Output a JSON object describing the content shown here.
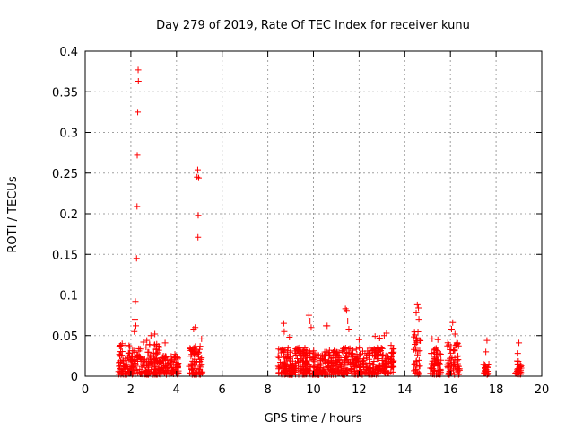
{
  "chart_data": {
    "type": "scatter",
    "title": "Day 279 of 2019, Rate Of TEC Index for receiver kunu",
    "xlabel": "GPS time / hours",
    "ylabel": "ROTI / TECUs",
    "xlim": [
      0,
      20
    ],
    "ylim": [
      0,
      0.4
    ],
    "x_ticks": [
      0,
      2,
      4,
      6,
      8,
      10,
      12,
      14,
      16,
      18,
      20
    ],
    "x_tick_labels": [
      "0",
      "2",
      "4",
      "6",
      "8",
      "10",
      "12",
      "14",
      "16",
      "18",
      "20"
    ],
    "y_ticks": [
      0,
      0.05,
      0.1,
      0.15,
      0.2,
      0.25,
      0.3,
      0.35,
      0.4
    ],
    "y_tick_labels": [
      "0",
      "0.05",
      "0.1",
      "0.15",
      "0.2",
      "0.25",
      "0.3",
      "0.35",
      "0.4"
    ],
    "grid": true,
    "marker": "+",
    "color": "#ff0000",
    "series": [
      {
        "name": "ROTI",
        "points": [
          [
            2.32,
            0.377
          ],
          [
            2.33,
            0.363
          ],
          [
            2.3,
            0.325
          ],
          [
            2.28,
            0.272
          ],
          [
            2.27,
            0.209
          ],
          [
            2.25,
            0.145
          ],
          [
            2.2,
            0.092
          ],
          [
            2.18,
            0.07
          ],
          [
            2.22,
            0.062
          ],
          [
            2.15,
            0.055
          ],
          [
            4.93,
            0.254
          ],
          [
            4.9,
            0.245
          ],
          [
            4.97,
            0.244
          ],
          [
            4.95,
            0.198
          ],
          [
            4.94,
            0.171
          ],
          [
            1.62,
            0.04
          ],
          [
            1.78,
            0.038
          ],
          [
            1.95,
            0.036
          ],
          [
            2.55,
            0.042
          ],
          [
            2.7,
            0.044
          ],
          [
            2.88,
            0.05
          ],
          [
            3.05,
            0.052
          ],
          [
            3.5,
            0.041
          ],
          [
            3.93,
            0.027
          ],
          [
            4.75,
            0.058
          ],
          [
            4.82,
            0.06
          ],
          [
            5.1,
            0.046
          ],
          [
            8.7,
            0.065
          ],
          [
            8.72,
            0.055
          ],
          [
            8.95,
            0.048
          ],
          [
            9.8,
            0.075
          ],
          [
            9.85,
            0.068
          ],
          [
            9.9,
            0.06
          ],
          [
            10.55,
            0.062
          ],
          [
            10.6,
            0.062
          ],
          [
            11.4,
            0.083
          ],
          [
            11.45,
            0.081
          ],
          [
            11.5,
            0.068
          ],
          [
            11.55,
            0.058
          ],
          [
            12.0,
            0.045
          ],
          [
            12.7,
            0.049
          ],
          [
            12.9,
            0.047
          ],
          [
            13.1,
            0.05
          ],
          [
            13.2,
            0.053
          ],
          [
            13.4,
            0.038
          ],
          [
            14.55,
            0.088
          ],
          [
            14.6,
            0.084
          ],
          [
            14.5,
            0.078
          ],
          [
            14.62,
            0.07
          ],
          [
            15.2,
            0.046
          ],
          [
            15.45,
            0.045
          ],
          [
            16.05,
            0.058
          ],
          [
            16.1,
            0.066
          ],
          [
            16.2,
            0.052
          ],
          [
            16.3,
            0.04
          ],
          [
            17.6,
            0.044
          ],
          [
            17.55,
            0.03
          ],
          [
            19.0,
            0.041
          ],
          [
            18.95,
            0.028
          ]
        ],
        "clusters": [
          {
            "x_range": [
              1.45,
              3.25
            ],
            "y_range": [
              0.002,
              0.04
            ]
          },
          {
            "x_range": [
              3.25,
              4.1
            ],
            "y_range": [
              0.002,
              0.026
            ]
          },
          {
            "x_range": [
              4.55,
              5.15
            ],
            "y_range": [
              0.002,
              0.04
            ]
          },
          {
            "x_range": [
              8.45,
              9.7
            ],
            "y_range": [
              0.002,
              0.035
            ]
          },
          {
            "x_range": [
              9.6,
              11.2
            ],
            "y_range": [
              0.002,
              0.032
            ]
          },
          {
            "x_range": [
              11.2,
              13.55
            ],
            "y_range": [
              0.002,
              0.035
            ]
          },
          {
            "x_range": [
              14.4,
              14.7
            ],
            "y_range": [
              0.002,
              0.055
            ]
          },
          {
            "x_range": [
              15.1,
              15.6
            ],
            "y_range": [
              0.002,
              0.035
            ]
          },
          {
            "x_range": [
              15.85,
              16.4
            ],
            "y_range": [
              0.002,
              0.045
            ]
          },
          {
            "x_range": [
              17.45,
              17.7
            ],
            "y_range": [
              0.002,
              0.015
            ]
          },
          {
            "x_range": [
              18.85,
              19.1
            ],
            "y_range": [
              0.002,
              0.02
            ]
          }
        ]
      }
    ]
  }
}
